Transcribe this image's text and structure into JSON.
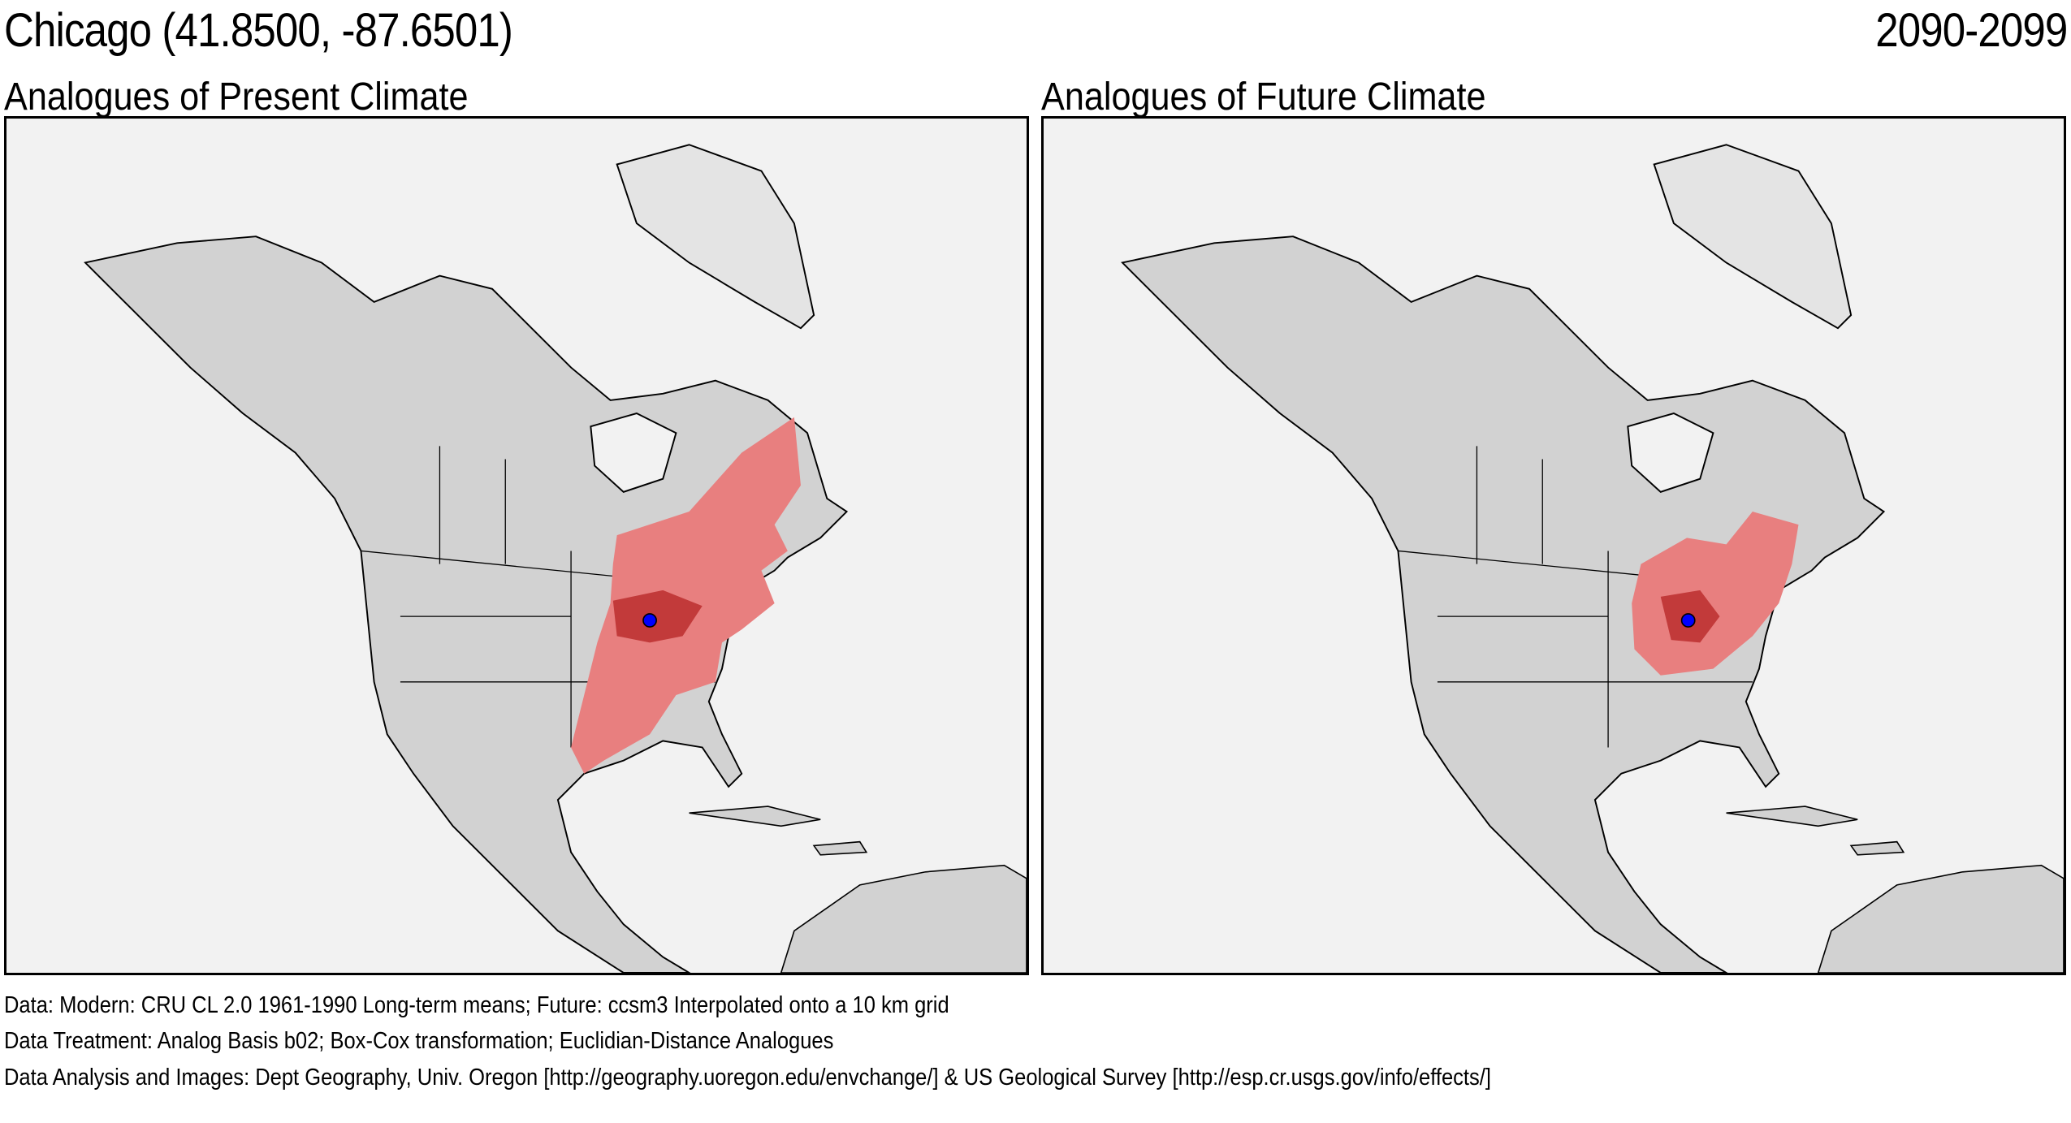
{
  "header": {
    "location_title": "Chicago  (41.8500, -87.6501)",
    "period": "2090-2099"
  },
  "panels": [
    {
      "title": "Analogues of Present Climate",
      "site_marker": "Chicago"
    },
    {
      "title": "Analogues of Future Climate",
      "site_marker": "Chicago"
    }
  ],
  "colors": {
    "background": "#f2f2f2",
    "land": "#d2d2d2",
    "analog_light": "#e87f7f",
    "analog_dark": "#c23a3a",
    "site_marker": "#0000ff"
  },
  "footer": {
    "data": "Data:  Modern: CRU CL 2.0 1961-1990 Long-term means; Future: ccsm3 Interpolated onto a 10 km grid",
    "treatment": "Data Treatment:  Analog Basis b02; Box-Cox transformation; Euclidian-Distance Analogues",
    "analysis": "Data Analysis and Images:  Dept Geography, Univ. Oregon [http://geography.uoregon.edu/envchange/] & US Geological Survey [http://esp.cr.usgs.gov/info/effects/]"
  }
}
